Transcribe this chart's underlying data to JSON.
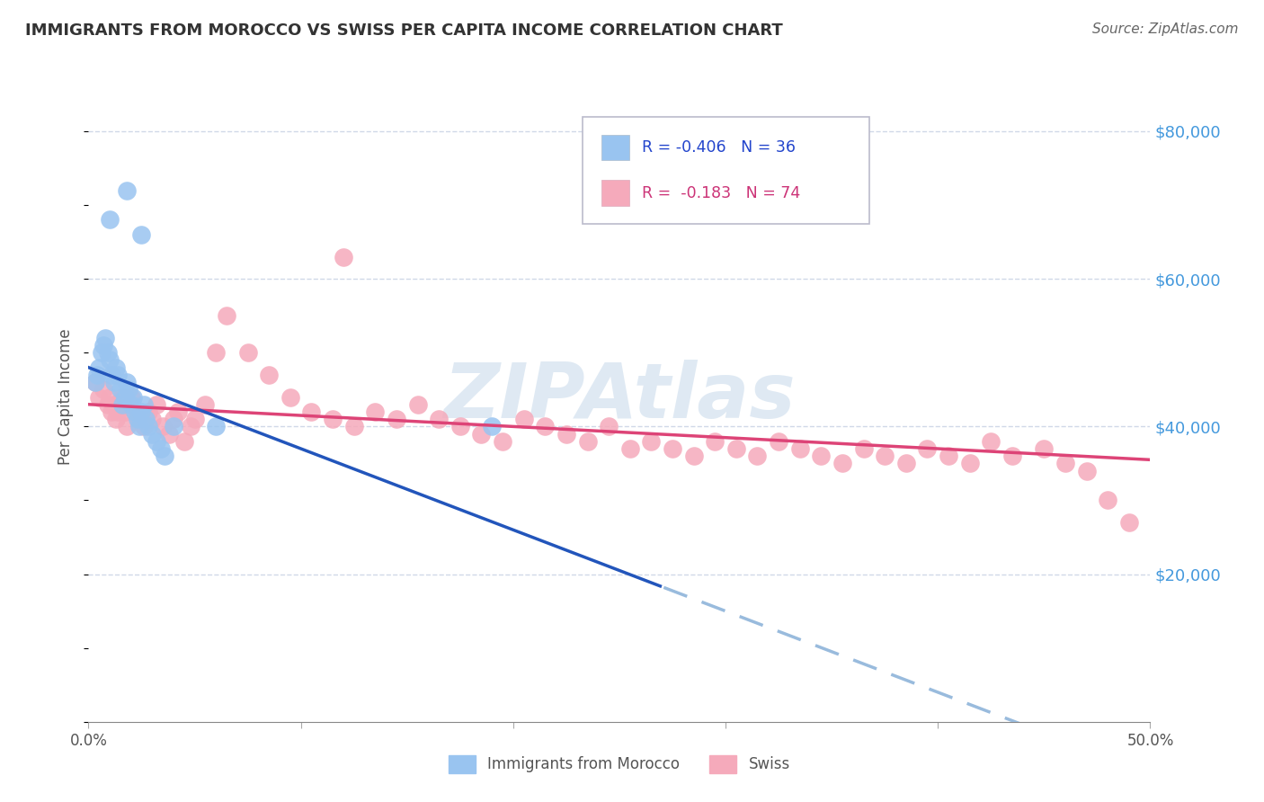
{
  "title": "IMMIGRANTS FROM MOROCCO VS SWISS PER CAPITA INCOME CORRELATION CHART",
  "source_text": "Source: ZipAtlas.com",
  "ylabel": "Per Capita Income",
  "xlim": [
    0.0,
    0.5
  ],
  "ylim": [
    0,
    88000
  ],
  "xticks": [
    0.0,
    0.1,
    0.2,
    0.3,
    0.4,
    0.5
  ],
  "xticklabels": [
    "0.0%",
    "",
    "",
    "",
    "",
    "50.0%"
  ],
  "yticks": [
    20000,
    40000,
    60000,
    80000
  ],
  "yticklabels": [
    "$20,000",
    "$40,000",
    "$60,000",
    "$80,000"
  ],
  "grid_color": "#d0d8e8",
  "bg_color": "#ffffff",
  "plot_area_bg": "#f5f8ff",
  "watermark": "ZIPAtlas",
  "watermark_color": "#c5d8ea",
  "legend_R1": "R = -0.406",
  "legend_N1": "N = 36",
  "legend_R2": "R =  -0.183",
  "legend_N2": "N = 74",
  "series1_color": "#99c4f0",
  "series2_color": "#f5aabb",
  "series1_label": "Immigrants from Morocco",
  "series2_label": "Swiss",
  "trend1_color": "#2255bb",
  "trend2_color": "#dd4477",
  "trend1_dash_color": "#99bbdd",
  "blue_x": [
    0.003,
    0.004,
    0.005,
    0.006,
    0.007,
    0.008,
    0.009,
    0.01,
    0.011,
    0.012,
    0.013,
    0.014,
    0.015,
    0.016,
    0.017,
    0.018,
    0.019,
    0.02,
    0.021,
    0.022,
    0.023,
    0.024,
    0.025,
    0.026,
    0.027,
    0.028,
    0.03,
    0.032,
    0.034,
    0.036,
    0.01,
    0.018,
    0.025,
    0.04,
    0.06,
    0.19
  ],
  "blue_y": [
    46000,
    47000,
    48000,
    50000,
    51000,
    52000,
    50000,
    49000,
    47000,
    46000,
    48000,
    47000,
    45000,
    43000,
    44000,
    46000,
    45000,
    43000,
    44000,
    42000,
    41000,
    40000,
    42000,
    43000,
    41000,
    40000,
    39000,
    38000,
    37000,
    36000,
    68000,
    72000,
    66000,
    40000,
    40000,
    40000
  ],
  "pink_x": [
    0.003,
    0.005,
    0.007,
    0.009,
    0.01,
    0.011,
    0.012,
    0.013,
    0.014,
    0.015,
    0.016,
    0.017,
    0.018,
    0.019,
    0.02,
    0.022,
    0.024,
    0.026,
    0.028,
    0.03,
    0.032,
    0.035,
    0.038,
    0.04,
    0.042,
    0.045,
    0.048,
    0.05,
    0.055,
    0.06,
    0.065,
    0.075,
    0.085,
    0.095,
    0.105,
    0.115,
    0.125,
    0.135,
    0.145,
    0.155,
    0.165,
    0.175,
    0.185,
    0.195,
    0.205,
    0.215,
    0.225,
    0.235,
    0.245,
    0.255,
    0.265,
    0.275,
    0.285,
    0.295,
    0.305,
    0.315,
    0.325,
    0.335,
    0.345,
    0.355,
    0.365,
    0.375,
    0.385,
    0.395,
    0.405,
    0.415,
    0.425,
    0.435,
    0.45,
    0.46,
    0.47,
    0.48,
    0.49,
    0.12
  ],
  "pink_y": [
    46000,
    44000,
    45000,
    43000,
    44000,
    42000,
    43000,
    41000,
    42000,
    43000,
    44000,
    42000,
    40000,
    43000,
    44000,
    42000,
    41000,
    40000,
    42000,
    41000,
    43000,
    40000,
    39000,
    41000,
    42000,
    38000,
    40000,
    41000,
    43000,
    50000,
    55000,
    50000,
    47000,
    44000,
    42000,
    41000,
    40000,
    42000,
    41000,
    43000,
    41000,
    40000,
    39000,
    38000,
    41000,
    40000,
    39000,
    38000,
    40000,
    37000,
    38000,
    37000,
    36000,
    38000,
    37000,
    36000,
    38000,
    37000,
    36000,
    35000,
    37000,
    36000,
    35000,
    37000,
    36000,
    35000,
    38000,
    36000,
    37000,
    35000,
    34000,
    30000,
    27000,
    63000
  ],
  "trend1_x_solid_end": 0.27,
  "trend1_slope": -110000,
  "trend1_intercept": 48000,
  "trend2_slope": -15000,
  "trend2_intercept": 43000
}
